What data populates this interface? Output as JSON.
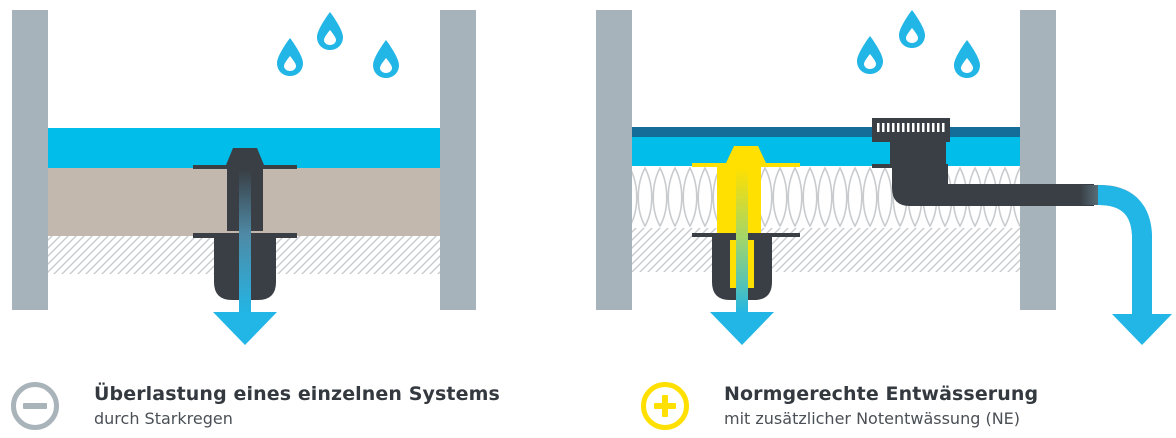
{
  "colors": {
    "wall": "#a7b3bb",
    "water": "#00bde9",
    "membrane_dark": "#146d99",
    "soil": "#c2b8ad",
    "hatch": "#c9ccce",
    "drain": "#3a3f45",
    "emergency_drain": "#ffe000",
    "arrow": "#22b6e6",
    "minus_icon": "#a9b3ba",
    "plus_icon": "#ffe000"
  },
  "left_panel": {
    "icon": "minus-circle-icon",
    "title": "Überlastung eines einzelnen Systems",
    "subtitle": "durch Starkregen"
  },
  "right_panel": {
    "icon": "plus-circle-icon",
    "title": "Normgerechte Entwässerung",
    "subtitle": "mit zusätzlicher Notentwässung (NE)"
  }
}
